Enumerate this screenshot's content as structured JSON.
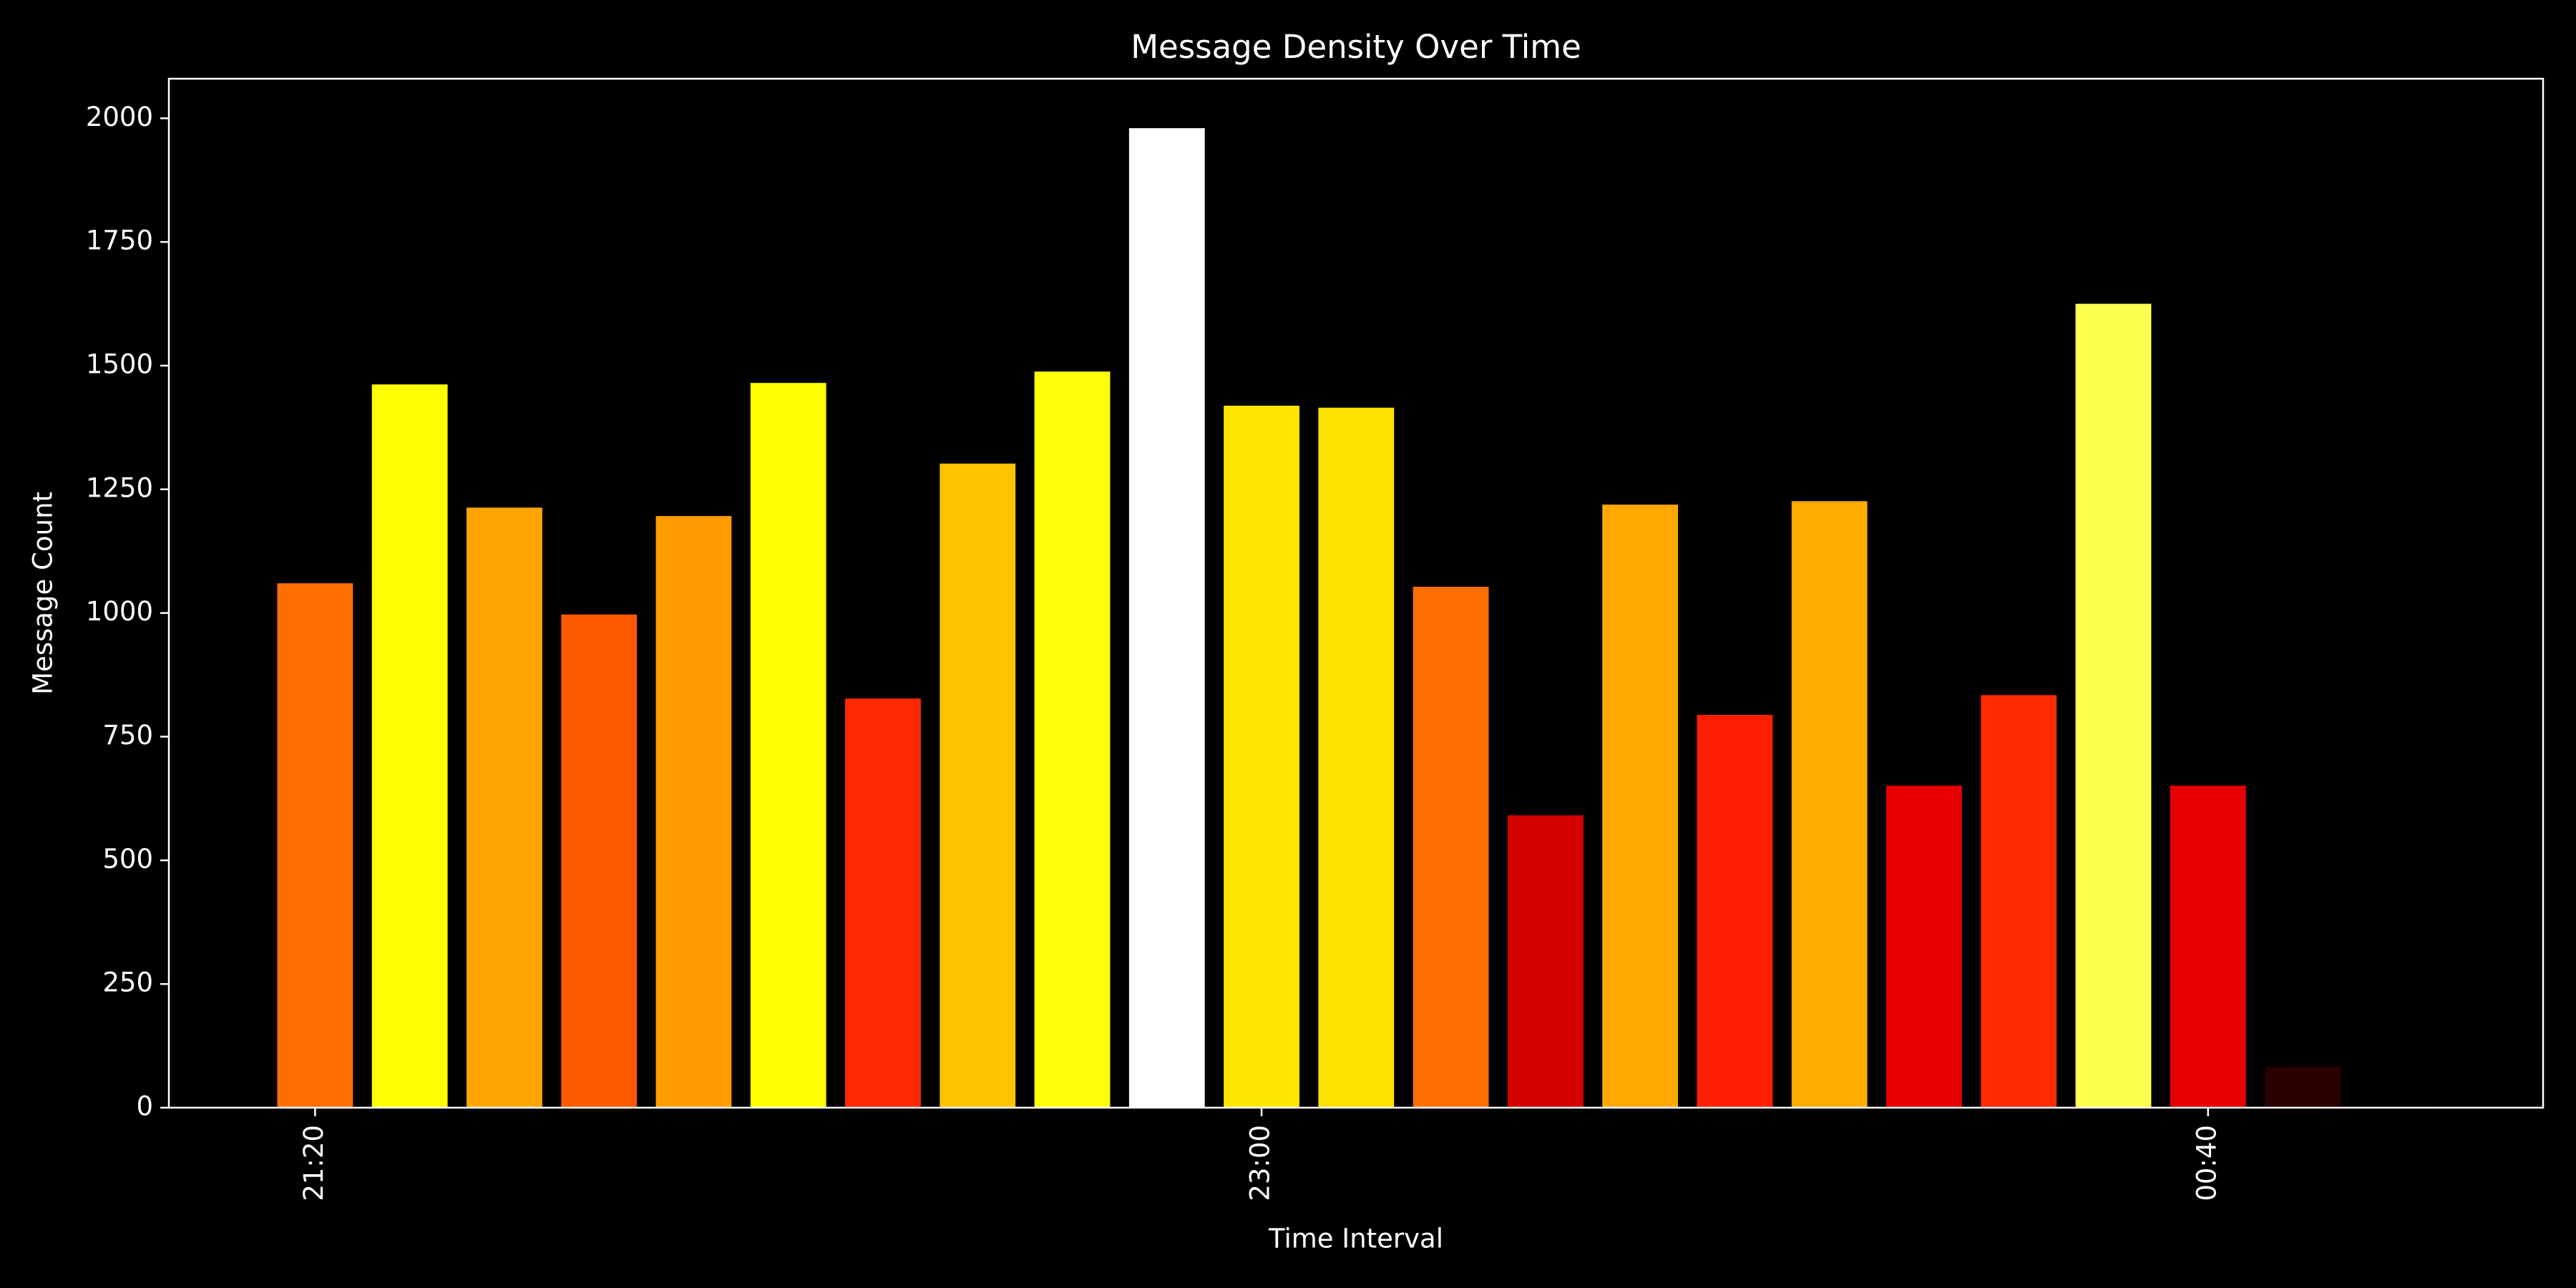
{
  "chart_data": {
    "type": "bar",
    "title": "Message Density Over Time",
    "x_label": "Time Interval",
    "y_label": "Message Count",
    "categories": [
      "21:20",
      null,
      null,
      null,
      null,
      null,
      null,
      null,
      null,
      null,
      "23:00",
      null,
      null,
      null,
      null,
      null,
      null,
      null,
      null,
      null,
      "00:40",
      null,
      null
    ],
    "values": [
      1060,
      1462,
      1213,
      997,
      1196,
      1465,
      827,
      1302,
      1488,
      1980,
      1419,
      1415,
      1053,
      591,
      1219,
      794,
      1226,
      651,
      834,
      1625,
      651,
      83,
      7
    ],
    "colors": [
      "#ff6f00",
      "#ffff00",
      "#ffa500",
      "#ff5a00",
      "#ff9c00",
      "#ffff00",
      "#ff2800",
      "#ffc300",
      "#ffff08",
      "#ffffff",
      "#ffe600",
      "#ffe300",
      "#ff6e00",
      "#d40000",
      "#ffa800",
      "#ff1e00",
      "#ffab00",
      "#e80000",
      "#ff2a00",
      "#ffff50",
      "#e80000",
      "#2a0000",
      "#0a0000"
    ],
    "ylim": [
      0,
      2080
    ],
    "yticks": [
      0,
      250,
      500,
      750,
      1000,
      1250,
      1500,
      1750,
      2000
    ]
  }
}
